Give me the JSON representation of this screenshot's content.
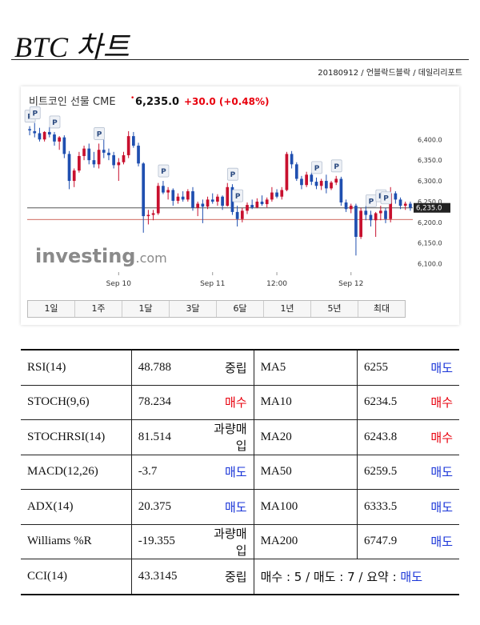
{
  "header": {
    "title": "BTC 차트",
    "meta": "20180912 / 언블락드블락 / 데일리리포트"
  },
  "chart_data": {
    "type": "candlestick",
    "instrument": "비트코인 선물 CME",
    "price": "6,235.0",
    "change": "+30.0",
    "change_pct": "(+0.48%)",
    "current_price_label": "6,235.0",
    "ylim": [
      6080,
      6470
    ],
    "yticks": [
      6100,
      6150,
      6200,
      6250,
      6300,
      6350,
      6400
    ],
    "ytick_labels": [
      "6,100.0",
      "6,150.0",
      "6,200.0",
      "6,250.0",
      "6,300.0",
      "6,350.0",
      "6,400.0"
    ],
    "xtick_labels": [
      {
        "label": "Sep 10",
        "index": 18
      },
      {
        "label": "Sep 11",
        "index": 37
      },
      {
        "label": "12:00",
        "index": 50
      },
      {
        "label": "Sep 12",
        "index": 65
      }
    ],
    "reference_line": 6207,
    "current_line": 6235,
    "candles": [
      [
        6425,
        6432,
        6410,
        6422
      ],
      [
        6420,
        6440,
        6405,
        6415
      ],
      [
        6415,
        6428,
        6395,
        6400
      ],
      [
        6400,
        6420,
        6395,
        6418
      ],
      [
        6418,
        6430,
        6405,
        6412
      ],
      [
        6412,
        6418,
        6385,
        6395
      ],
      [
        6395,
        6408,
        6375,
        6405
      ],
      [
        6405,
        6410,
        6355,
        6365
      ],
      [
        6365,
        6372,
        6280,
        6300
      ],
      [
        6300,
        6330,
        6285,
        6325
      ],
      [
        6325,
        6370,
        6320,
        6360
      ],
      [
        6360,
        6385,
        6350,
        6378
      ],
      [
        6378,
        6390,
        6340,
        6350
      ],
      [
        6350,
        6370,
        6332,
        6340
      ],
      [
        6340,
        6390,
        6330,
        6375
      ],
      [
        6375,
        6400,
        6355,
        6368
      ],
      [
        6368,
        6378,
        6350,
        6362
      ],
      [
        6362,
        6370,
        6330,
        6338
      ],
      [
        6338,
        6355,
        6300,
        6345
      ],
      [
        6345,
        6370,
        6340,
        6362
      ],
      [
        6362,
        6420,
        6355,
        6408
      ],
      [
        6408,
        6418,
        6380,
        6385
      ],
      [
        6385,
        6392,
        6335,
        6342
      ],
      [
        6342,
        6345,
        6175,
        6215
      ],
      [
        6215,
        6230,
        6195,
        6218
      ],
      [
        6218,
        6230,
        6205,
        6222
      ],
      [
        6222,
        6295,
        6218,
        6288
      ],
      [
        6288,
        6300,
        6268,
        6272
      ],
      [
        6272,
        6285,
        6255,
        6278
      ],
      [
        6278,
        6282,
        6240,
        6252
      ],
      [
        6252,
        6270,
        6245,
        6262
      ],
      [
        6262,
        6275,
        6250,
        6255
      ],
      [
        6255,
        6280,
        6250,
        6275
      ],
      [
        6275,
        6285,
        6228,
        6235
      ],
      [
        6235,
        6250,
        6215,
        6245
      ],
      [
        6245,
        6255,
        6198,
        6238
      ],
      [
        6238,
        6262,
        6232,
        6255
      ],
      [
        6255,
        6270,
        6245,
        6250
      ],
      [
        6250,
        6268,
        6240,
        6262
      ],
      [
        6262,
        6265,
        6230,
        6240
      ],
      [
        6240,
        6295,
        6238,
        6285
      ],
      [
        6285,
        6292,
        6218,
        6225
      ],
      [
        6225,
        6240,
        6190,
        6208
      ],
      [
        6208,
        6235,
        6200,
        6228
      ],
      [
        6228,
        6248,
        6220,
        6242
      ],
      [
        6242,
        6255,
        6232,
        6236
      ],
      [
        6236,
        6258,
        6234,
        6250
      ],
      [
        6250,
        6265,
        6240,
        6244
      ],
      [
        6244,
        6260,
        6236,
        6255
      ],
      [
        6255,
        6285,
        6250,
        6272
      ],
      [
        6272,
        6280,
        6258,
        6262
      ],
      [
        6262,
        6285,
        6255,
        6278
      ],
      [
        6278,
        6370,
        6275,
        6365
      ],
      [
        6365,
        6372,
        6330,
        6340
      ],
      [
        6340,
        6345,
        6300,
        6305
      ],
      [
        6305,
        6312,
        6280,
        6290
      ],
      [
        6290,
        6322,
        6285,
        6315
      ],
      [
        6315,
        6320,
        6290,
        6298
      ],
      [
        6298,
        6308,
        6280,
        6288
      ],
      [
        6288,
        6305,
        6278,
        6300
      ],
      [
        6300,
        6315,
        6270,
        6282
      ],
      [
        6282,
        6300,
        6278,
        6296
      ],
      [
        6296,
        6312,
        6290,
        6305
      ],
      [
        6305,
        6310,
        6240,
        6248
      ],
      [
        6248,
        6255,
        6225,
        6232
      ],
      [
        6232,
        6245,
        6222,
        6240
      ],
      [
        6240,
        6245,
        6120,
        6165
      ],
      [
        6165,
        6235,
        6160,
        6228
      ],
      [
        6228,
        6240,
        6205,
        6218
      ],
      [
        6218,
        6228,
        6190,
        6205
      ],
      [
        6205,
        6225,
        6165,
        6222
      ],
      [
        6222,
        6240,
        6205,
        6228
      ],
      [
        6228,
        6235,
        6198,
        6208
      ],
      [
        6208,
        6285,
        6200,
        6270
      ],
      [
        6270,
        6275,
        6245,
        6255
      ],
      [
        6255,
        6260,
        6232,
        6240
      ],
      [
        6240,
        6250,
        6230,
        6245
      ],
      [
        6245,
        6250,
        6228,
        6235
      ]
    ]
  },
  "chart_ui": {
    "watermark": "investing",
    "watermark_suffix": ".com",
    "marker_label": "P",
    "range_buttons": [
      "1일",
      "1주",
      "1달",
      "3달",
      "6달",
      "1년",
      "5년",
      "최대"
    ]
  },
  "indicators": [
    {
      "name": "RSI(14)",
      "value": "48.788",
      "signal": "중립",
      "signal_type": "neutral",
      "ma": "MA5",
      "ma_value": "6255",
      "ma_signal": "매도",
      "ma_signal_type": "sell"
    },
    {
      "name": "STOCH(9,6)",
      "value": "78.234",
      "signal": "매수",
      "signal_type": "buy",
      "ma": "MA10",
      "ma_value": "6234.5",
      "ma_signal": "매수",
      "ma_signal_type": "buy"
    },
    {
      "name": "STOCHRSI(14)",
      "value": "81.514",
      "signal": "과량매입",
      "signal_type": "neutral",
      "ma": "MA20",
      "ma_value": "6243.8",
      "ma_signal": "매수",
      "ma_signal_type": "buy"
    },
    {
      "name": "MACD(12,26)",
      "value": "-3.7",
      "signal": "매도",
      "signal_type": "sell",
      "ma": "MA50",
      "ma_value": "6259.5",
      "ma_signal": "매도",
      "ma_signal_type": "sell"
    },
    {
      "name": "ADX(14)",
      "value": "20.375",
      "signal": "매도",
      "signal_type": "sell",
      "ma": "MA100",
      "ma_value": "6333.5",
      "ma_signal": "매도",
      "ma_signal_type": "sell"
    },
    {
      "name": "Williams %R",
      "value": "-19.355",
      "signal": "과량매입",
      "signal_type": "neutral",
      "ma": "MA200",
      "ma_value": "6747.9",
      "ma_signal": "매도",
      "ma_signal_type": "sell"
    }
  ],
  "last_row": {
    "name": "CCI(14)",
    "value": "43.3145",
    "signal": "중립",
    "summary_prefix": "매수 : 5 / 매도 : 7 / 요약 : ",
    "summary_result": "매도"
  },
  "colors": {
    "buy": "#e8000d",
    "sell": "#1a35d8",
    "up_candle": "#c8102e",
    "down_candle": "#1f4fb0"
  }
}
